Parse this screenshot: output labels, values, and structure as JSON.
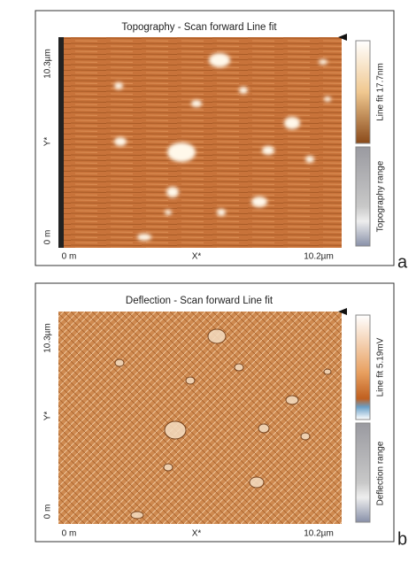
{
  "panels": [
    {
      "title": "Topography - Scan forward   Line fit",
      "y_top": "10.3µm",
      "y_axis": "Y*",
      "y_bottom": "0 m",
      "x_left": "0 m",
      "x_axis": "X*",
      "x_right": "10.2µm",
      "colorbar_top": "Line fit 17.7nm",
      "colorbar_bottom": "Topography range",
      "letter": "a"
    },
    {
      "title": "Deflection - Scan forward   Line fit",
      "y_top": "10.3µm",
      "y_axis": "Y*",
      "y_bottom": "0 m",
      "x_left": "0 m",
      "x_axis": "X*",
      "x_right": "10.2µm",
      "colorbar_top": "Line fit 5.19mV",
      "colorbar_bottom": "Deflection range",
      "letter": "b"
    }
  ]
}
